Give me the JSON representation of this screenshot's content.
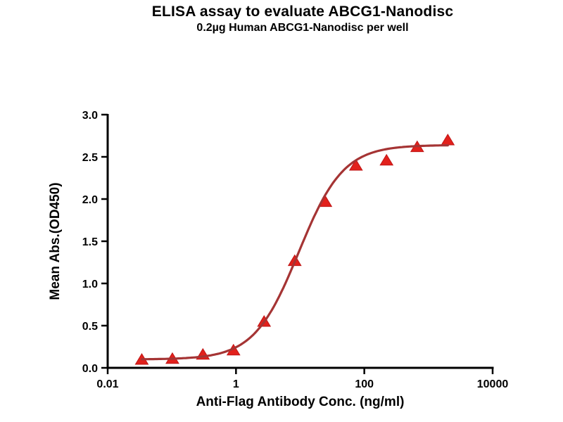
{
  "chart_data": {
    "type": "scatter",
    "title": "ELISA assay to evaluate ABCG1-Nanodisc",
    "subtitle": "0.2µg Human ABCG1-Nanodisc per well",
    "xlabel": "Anti-Flag Antibody Conc. (ng/ml)",
    "ylabel": "Mean Abs.(OD450)",
    "xscale": "log",
    "xlim": [
      0.01,
      10000
    ],
    "ylim": [
      0,
      3
    ],
    "grid": false,
    "legend": "none",
    "x_ticks": {
      "values": [
        0.01,
        1,
        100,
        10000
      ],
      "labels": [
        "0.01",
        "1",
        "100",
        "10000"
      ]
    },
    "y_ticks": {
      "values": [
        0,
        0.5,
        1,
        1.5,
        2,
        2.5,
        3
      ],
      "labels": [
        "0.0",
        "0.5",
        "1.0",
        "1.5",
        "2.0",
        "2.5",
        "3.0"
      ]
    },
    "series": [
      {
        "name": "Human ABCG1-Nanodisc",
        "marker": "filled-triangle-up",
        "marker_color": "#e2211c",
        "marker_edge_color": "#bf1616",
        "line_color": "#a53434",
        "x": [
          0.034,
          0.102,
          0.305,
          0.914,
          2.74,
          8.23,
          24.7,
          74.1,
          222,
          667,
          2000
        ],
        "y": [
          0.1,
          0.11,
          0.16,
          0.21,
          0.55,
          1.27,
          1.97,
          2.4,
          2.46,
          2.62,
          2.7
        ]
      }
    ],
    "fit_curve": {
      "model": "4PL sigmoid",
      "bottom": 0.1,
      "top": 2.64,
      "ec50": 9.5,
      "hill": 1.25
    },
    "colors": {
      "axis": "#000000",
      "text": "#000000",
      "background": "#ffffff"
    }
  }
}
